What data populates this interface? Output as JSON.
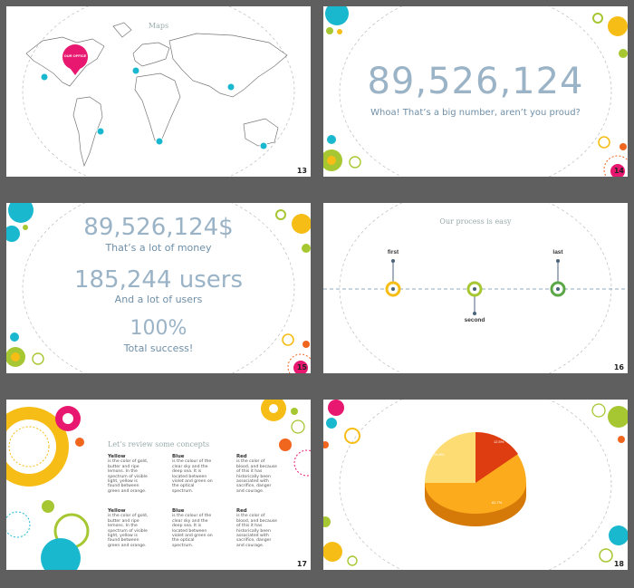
{
  "slides": [
    {
      "number": "13",
      "title": "Maps",
      "pin_label": "OUR OFFICE"
    },
    {
      "number": "14",
      "big": "89,526,124",
      "sub": "Whoa! That’s a big number, aren’t you proud?"
    },
    {
      "number": "15",
      "line1": "89,526,124$",
      "line1_sub": "That’s a lot of money",
      "line2": "185,244 users",
      "line2_sub": "And a lot of users",
      "line3": "100%",
      "line3_sub": "Total success!"
    },
    {
      "number": "16",
      "title": "Our process is easy",
      "steps": [
        "first",
        "second",
        "last"
      ]
    },
    {
      "number": "17",
      "title": "Let’s review some concepts",
      "columns": [
        {
          "head": "Yellow",
          "text": "is the color of gold, butter and ripe lemons. In the spectrum of visible light, yellow is found between green and orange."
        },
        {
          "head": "Blue",
          "text": "is the colour of the clear sky and the deep sea. It is located between violet and green on the optical spectrum."
        },
        {
          "head": "Red",
          "text": "is the color of blood, and because of this it has historically been associated with sacrifice, danger and courage."
        },
        {
          "head": "Yellow",
          "text": "is the color of gold, butter and ripe lemons. In the spectrum of visible light, yellow is found between green and orange."
        },
        {
          "head": "Blue",
          "text": "is the colour of the clear sky and the deep sea. It is located between violet and green on the optical spectrum."
        },
        {
          "head": "Red",
          "text": "is the color of blood, and because of this it has historically been associated with sacrifice, danger and courage."
        }
      ]
    },
    {
      "number": "18",
      "pie_labels": [
        "62.7%",
        "12.5%",
        "26.8%"
      ]
    }
  ],
  "colors": {
    "accent_blue": "#9ab3c6",
    "yellow": "#f7bd17",
    "cyan": "#1ab8cf",
    "magenta": "#e8176f",
    "lime": "#a6c731",
    "orange": "#f0661f"
  }
}
